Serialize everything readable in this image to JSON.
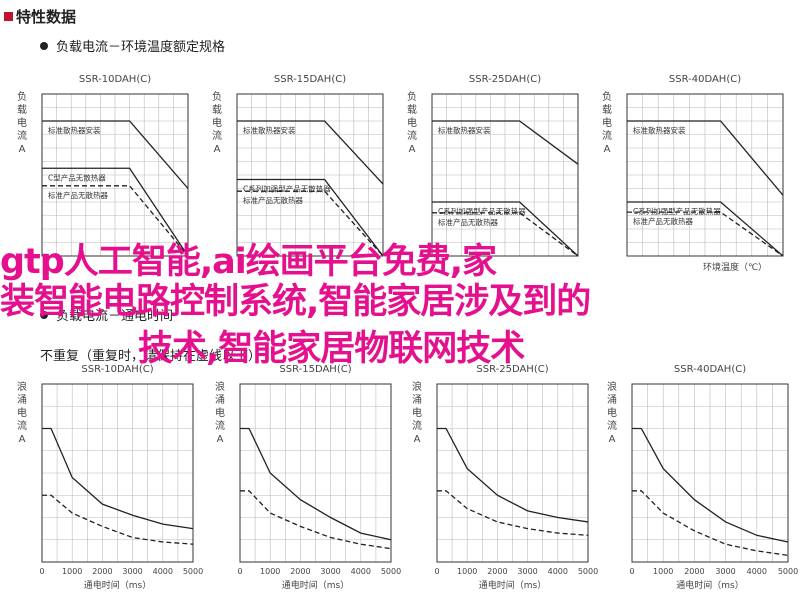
{
  "section_title": "特性数据",
  "bullet_1": "负载电流－环境温度额定规格",
  "bullet_2": "负载电流－通电时间",
  "note_2": "不重复（重复时，请保持在虚线以下）",
  "overlay": {
    "line1": "gtp人工智能,ai绘画平台免费,家",
    "line2": "装智能电路控制系统,智能家居涉及到的",
    "line3": "技术,智能家居物联网技术"
  },
  "colors": {
    "overlay_text": "#e4108e",
    "section_marker": "#c0142c",
    "plot_line": "#222222"
  },
  "chart_data": [
    {
      "type": "line",
      "title": "SSR-10DAH(C)",
      "ylabel": "负载电流（A）",
      "xlabel": "",
      "series": [
        {
          "name": "标准散热器安装",
          "x": [
            -20,
            40,
            80
          ],
          "y": [
            10,
            10,
            5
          ],
          "style": "solid"
        },
        {
          "name": "C型产品无散热器",
          "x": [
            -20,
            40,
            80
          ],
          "y": [
            6.5,
            6.5,
            0
          ],
          "style": "solid"
        },
        {
          "name": "标准产品无散热器",
          "x": [
            -20,
            40,
            80
          ],
          "y": [
            5.2,
            5.2,
            0
          ],
          "style": "dashed"
        }
      ],
      "xlim": [
        -20,
        80
      ],
      "ylim": [
        0,
        12
      ]
    },
    {
      "type": "line",
      "title": "SSR-15DAH(C)",
      "ylabel": "负载电流（A）",
      "xlabel": "",
      "series": [
        {
          "name": "标准散热器安装",
          "x": [
            -20,
            40,
            80
          ],
          "y": [
            15,
            15,
            8
          ],
          "style": "solid"
        },
        {
          "name": "C系列加强型产品无散热器",
          "x": [
            -20,
            40,
            80
          ],
          "y": [
            8.5,
            8.5,
            0
          ],
          "style": "solid"
        },
        {
          "name": "标准产品无散热器",
          "x": [
            -20,
            40,
            80
          ],
          "y": [
            7.2,
            7.2,
            0
          ],
          "style": "dashed"
        }
      ],
      "xlim": [
        -20,
        80
      ],
      "ylim": [
        0,
        18
      ]
    },
    {
      "type": "line",
      "title": "SSR-25DAH(C)",
      "ylabel": "负载电流（A）",
      "xlabel": "",
      "series": [
        {
          "name": "标准散热器安装",
          "x": [
            -20,
            40,
            80
          ],
          "y": [
            25,
            25,
            17
          ],
          "style": "solid"
        },
        {
          "name": "C系列加强型产品无散热器",
          "x": [
            -20,
            40,
            80
          ],
          "y": [
            10,
            10,
            0
          ],
          "style": "solid"
        },
        {
          "name": "标准产品无散热器",
          "x": [
            -20,
            40,
            80
          ],
          "y": [
            8,
            8,
            0
          ],
          "style": "dashed"
        }
      ],
      "xlim": [
        -20,
        80
      ],
      "ylim": [
        0,
        30
      ]
    },
    {
      "type": "line",
      "title": "SSR-40DAH(C)",
      "ylabel": "负载电流（A）",
      "xlabel": "环境温度（℃）",
      "series": [
        {
          "name": "标准散热器安装",
          "x": [
            -20,
            40,
            80
          ],
          "y": [
            40,
            40,
            18
          ],
          "style": "solid"
        },
        {
          "name": "C系列加强型产品无散热器",
          "x": [
            -20,
            40,
            80
          ],
          "y": [
            16,
            16,
            0
          ],
          "style": "solid"
        },
        {
          "name": "标准产品无散热器",
          "x": [
            -20,
            40,
            80
          ],
          "y": [
            13,
            13,
            0
          ],
          "style": "dashed"
        }
      ],
      "xlim": [
        -20,
        80
      ],
      "ylim": [
        0,
        48
      ]
    },
    {
      "type": "line",
      "title": "SSR-10DAH(C)",
      "ylabel": "浪涌电流（A Peak）",
      "xlabel": "通电时间（ms）",
      "x_ticks": [
        "0",
        "1000",
        "2000",
        "3000",
        "4000",
        "5000"
      ],
      "series": [
        {
          "name": "",
          "x": [
            0,
            300,
            1000,
            2000,
            3000,
            4000,
            5000
          ],
          "y": [
            60,
            60,
            38,
            26,
            21,
            17,
            15
          ],
          "style": "solid"
        },
        {
          "name": "",
          "x": [
            0,
            300,
            1000,
            2000,
            3000,
            4000,
            5000
          ],
          "y": [
            30,
            30,
            22,
            16,
            11,
            9,
            8
          ],
          "style": "dashed"
        }
      ],
      "xlim": [
        0,
        5000
      ],
      "ylim": [
        0,
        80
      ]
    },
    {
      "type": "line",
      "title": "SSR-15DAH(C)",
      "ylabel": "浪涌电流（A Peak）",
      "xlabel": "通电时间（ms）",
      "x_ticks": [
        "0",
        "1000",
        "2000",
        "3000",
        "4000",
        "5000"
      ],
      "series": [
        {
          "name": "",
          "x": [
            0,
            300,
            1000,
            2000,
            3000,
            4000,
            5000
          ],
          "y": [
            60,
            60,
            40,
            28,
            20,
            13,
            10
          ],
          "style": "solid"
        },
        {
          "name": "",
          "x": [
            0,
            300,
            1000,
            2000,
            3000,
            4000,
            5000
          ],
          "y": [
            32,
            32,
            22,
            16,
            11,
            8,
            6
          ],
          "style": "dashed"
        }
      ],
      "xlim": [
        0,
        5000
      ],
      "ylim": [
        0,
        80
      ]
    },
    {
      "type": "line",
      "title": "SSR-25DAH(C)",
      "ylabel": "浪涌电流（A Peak）",
      "xlabel": "通电时间（ms）",
      "x_ticks": [
        "0",
        "1000",
        "2000",
        "3000",
        "4000",
        "5000"
      ],
      "series": [
        {
          "name": "",
          "x": [
            0,
            300,
            1000,
            2000,
            3000,
            4000,
            5000
          ],
          "y": [
            60,
            60,
            42,
            30,
            23,
            20,
            18
          ],
          "style": "solid"
        },
        {
          "name": "",
          "x": [
            0,
            300,
            1000,
            2000,
            3000,
            4000,
            5000
          ],
          "y": [
            32,
            32,
            24,
            18,
            15,
            13,
            12
          ],
          "style": "dashed"
        }
      ],
      "xlim": [
        0,
        5000
      ],
      "ylim": [
        0,
        80
      ]
    },
    {
      "type": "line",
      "title": "SSR-40DAH(C)",
      "ylabel": "浪涌电流（A Peak）",
      "xlabel": "通电时间（ms）",
      "x_ticks": [
        "0",
        "1000",
        "2000",
        "3000",
        "4000",
        "5000"
      ],
      "series": [
        {
          "name": "",
          "x": [
            0,
            300,
            1000,
            2000,
            3000,
            4000,
            5000
          ],
          "y": [
            60,
            60,
            42,
            28,
            18,
            12,
            9
          ],
          "style": "solid"
        },
        {
          "name": "",
          "x": [
            0,
            300,
            1000,
            2000,
            3000,
            4000,
            5000
          ],
          "y": [
            32,
            32,
            22,
            14,
            8,
            5,
            3
          ],
          "style": "dashed"
        }
      ],
      "xlim": [
        0,
        5000
      ],
      "ylim": [
        0,
        80
      ]
    }
  ]
}
